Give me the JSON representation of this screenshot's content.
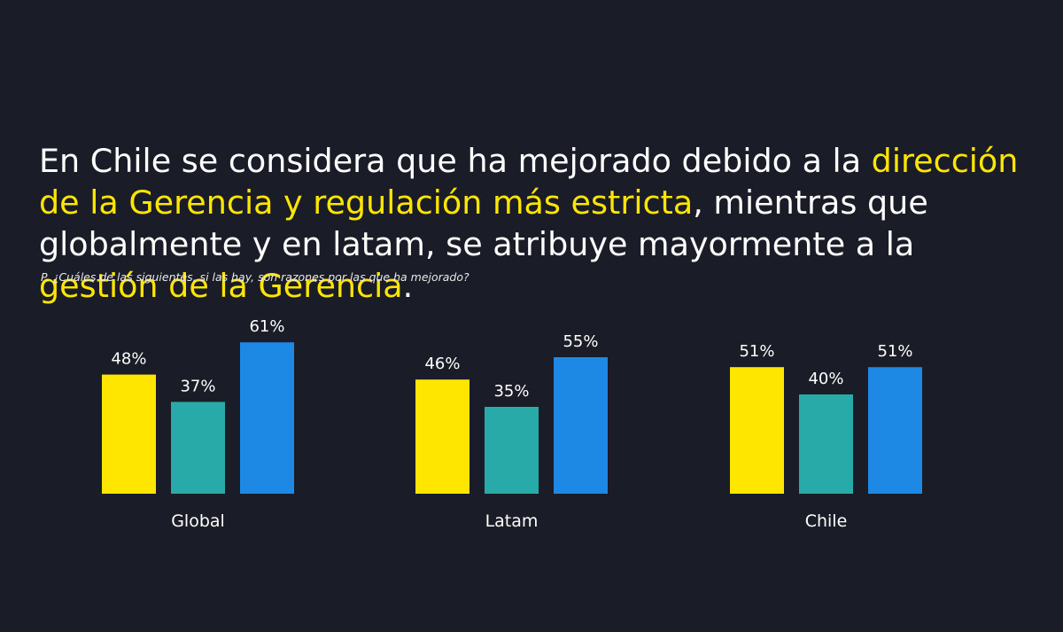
{
  "headline": {
    "part1": "En Chile se considera que ha mejorado debido a la ",
    "highlight1": "dirección de la Gerencia y regulación más estricta",
    "part2": ", mientras que globalmente y en latam, se atribuye mayormente a la ",
    "highlight2": "gestión de la Gerencia",
    "part3": "."
  },
  "question": "P. ¿Cuáles de las siguientes, si las hay, son razones por las que ha mejorado?",
  "colors": {
    "background": "#1a1d27",
    "highlight": "#ffe600",
    "series": [
      "#ffe600",
      "#27aaa8",
      "#1e88e5"
    ]
  },
  "chart_data": {
    "type": "bar",
    "categories": [
      "Global",
      "Latam",
      "Chile"
    ],
    "series": [
      {
        "values": [
          48,
          46,
          51
        ],
        "labels": [
          "48%",
          "46%",
          "51%"
        ]
      },
      {
        "values": [
          37,
          35,
          40
        ],
        "labels": [
          "37%",
          "35%",
          "40%"
        ]
      },
      {
        "values": [
          61,
          55,
          51
        ],
        "labels": [
          "61%",
          "55%",
          "51%"
        ]
      }
    ],
    "unit": "%",
    "grid": false,
    "legend": "none"
  }
}
